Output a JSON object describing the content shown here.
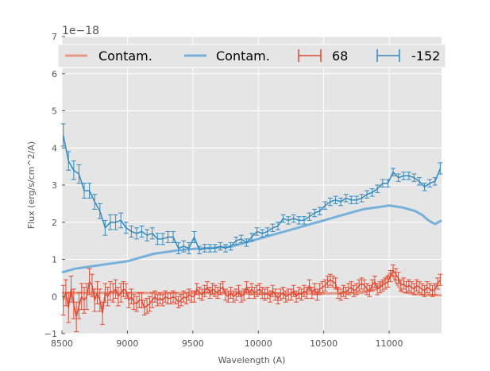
{
  "chart_data": {
    "type": "line",
    "title": "",
    "xlabel": "Wavelength (A)",
    "ylabel": "Flux (erg/s/cm^2/A)",
    "y_offset_label": "1e−18",
    "y_scale": 1e-18,
    "xlim": [
      8500,
      11400
    ],
    "ylim": [
      -1,
      7
    ],
    "xticks": [
      8500,
      9000,
      9500,
      10000,
      10500,
      11000
    ],
    "yticks": [
      -1,
      0,
      1,
      2,
      3,
      4,
      5,
      6,
      7
    ],
    "grid": true,
    "legend_position": "top",
    "series": [
      {
        "name": "Contam.",
        "kind": "line",
        "color": "#E69A85",
        "x": [
          8500,
          8700,
          9000,
          9300,
          9600,
          9900,
          10200,
          10500,
          10800,
          10900,
          10960,
          11000,
          11030,
          11060,
          11100,
          11200,
          11300,
          11400
        ],
        "y": [
          0.1,
          0.1,
          0.1,
          0.09,
          0.09,
          0.08,
          0.08,
          0.08,
          0.1,
          0.2,
          0.4,
          0.62,
          0.55,
          0.32,
          0.12,
          0.06,
          0.04,
          0.03
        ]
      },
      {
        "name": "Contam.",
        "kind": "line",
        "color": "#77B0D9",
        "x": [
          8500,
          8600,
          8700,
          8800,
          8900,
          9000,
          9100,
          9200,
          9300,
          9400,
          9500,
          9600,
          9700,
          9800,
          9900,
          10000,
          10100,
          10200,
          10300,
          10400,
          10500,
          10600,
          10700,
          10800,
          10900,
          11000,
          11100,
          11200,
          11250,
          11300,
          11350,
          11400
        ],
        "y": [
          0.65,
          0.75,
          0.8,
          0.85,
          0.9,
          0.95,
          1.05,
          1.15,
          1.2,
          1.25,
          1.28,
          1.3,
          1.32,
          1.35,
          1.45,
          1.55,
          1.65,
          1.75,
          1.85,
          1.95,
          2.05,
          2.15,
          2.25,
          2.35,
          2.4,
          2.45,
          2.4,
          2.3,
          2.2,
          2.05,
          1.95,
          2.05
        ]
      },
      {
        "name": "68",
        "kind": "errorbar",
        "color": "#E24A33",
        "x": [
          8510,
          8530,
          8550,
          8570,
          8590,
          8610,
          8630,
          8650,
          8670,
          8690,
          8710,
          8730,
          8750,
          8770,
          8790,
          8810,
          8830,
          8850,
          8870,
          8890,
          8910,
          8930,
          8950,
          8970,
          8990,
          9010,
          9030,
          9050,
          9070,
          9090,
          9110,
          9130,
          9150,
          9170,
          9190,
          9210,
          9230,
          9250,
          9270,
          9290,
          9310,
          9330,
          9350,
          9370,
          9390,
          9410,
          9430,
          9450,
          9470,
          9490,
          9510,
          9530,
          9550,
          9570,
          9590,
          9610,
          9630,
          9650,
          9670,
          9690,
          9710,
          9730,
          9750,
          9770,
          9790,
          9810,
          9830,
          9850,
          9870,
          9890,
          9910,
          9930,
          9950,
          9970,
          9990,
          10010,
          10030,
          10050,
          10070,
          10090,
          10110,
          10130,
          10150,
          10170,
          10190,
          10210,
          10230,
          10250,
          10270,
          10290,
          10310,
          10330,
          10350,
          10370,
          10390,
          10410,
          10430,
          10450,
          10470,
          10490,
          10510,
          10530,
          10550,
          10570,
          10590,
          10610,
          10630,
          10650,
          10670,
          10690,
          10710,
          10730,
          10750,
          10770,
          10790,
          10810,
          10830,
          10850,
          10870,
          10890,
          10910,
          10930,
          10950,
          10970,
          10990,
          11010,
          11030,
          11050,
          11070,
          11090,
          11110,
          11130,
          11150,
          11170,
          11190,
          11210,
          11230,
          11250,
          11270,
          11290,
          11310,
          11330,
          11350,
          11370,
          11390
        ],
        "y": [
          -0.1,
          0.1,
          -0.3,
          0.2,
          -0.2,
          -0.55,
          -0.25,
          0.0,
          -0.1,
          0.0,
          0.4,
          0.3,
          -0.1,
          0.1,
          -0.1,
          -0.45,
          0.1,
          0.0,
          0.15,
          0.1,
          0.2,
          0.0,
          0.1,
          0.2,
          0.15,
          -0.1,
          0.0,
          -0.15,
          -0.2,
          -0.1,
          -0.1,
          -0.3,
          -0.25,
          -0.2,
          -0.1,
          0.0,
          -0.1,
          -0.05,
          -0.1,
          0.0,
          -0.05,
          -0.05,
          0.0,
          -0.05,
          -0.15,
          -0.1,
          0.0,
          -0.05,
          0.05,
          0.0,
          0.0,
          0.2,
          0.1,
          0.05,
          0.15,
          0.25,
          0.1,
          0.2,
          0.15,
          0.1,
          0.2,
          0.25,
          0.05,
          0.0,
          0.1,
          0.0,
          0.05,
          0.15,
          0.0,
          0.05,
          0.25,
          0.1,
          0.2,
          0.1,
          0.15,
          0.2,
          0.1,
          0.05,
          0.1,
          0.0,
          0.15,
          0.05,
          -0.05,
          0.05,
          0.1,
          0.0,
          0.05,
          0.05,
          0.15,
          0.0,
          0.1,
          0.05,
          0.15,
          0.1,
          0.3,
          0.1,
          0.2,
          0.05,
          0.2,
          0.25,
          0.3,
          0.4,
          0.45,
          0.4,
          0.35,
          0.1,
          0.05,
          0.15,
          0.1,
          0.2,
          0.25,
          0.15,
          0.2,
          0.3,
          0.35,
          0.3,
          0.2,
          0.15,
          0.3,
          0.4,
          0.2,
          0.25,
          0.3,
          0.35,
          0.4,
          0.55,
          0.7,
          0.6,
          0.5,
          0.3,
          0.35,
          0.25,
          0.3,
          0.25,
          0.2,
          0.3,
          0.25,
          0.2,
          0.15,
          0.25,
          0.2,
          0.15,
          0.2,
          0.35,
          0.45
        ],
        "err": [
          0.4,
          0.35,
          0.4,
          0.35,
          0.4,
          0.4,
          0.35,
          0.35,
          0.35,
          0.35,
          0.35,
          0.3,
          0.3,
          0.3,
          0.3,
          0.3,
          0.25,
          0.25,
          0.25,
          0.25,
          0.25,
          0.25,
          0.25,
          0.2,
          0.2,
          0.2,
          0.2,
          0.2,
          0.2,
          0.2,
          0.2,
          0.2,
          0.2,
          0.2,
          0.2,
          0.15,
          0.15,
          0.15,
          0.15,
          0.15,
          0.15,
          0.15,
          0.15,
          0.15,
          0.15,
          0.15,
          0.15,
          0.15,
          0.15,
          0.15,
          0.15,
          0.15,
          0.15,
          0.15,
          0.15,
          0.15,
          0.15,
          0.15,
          0.15,
          0.15,
          0.15,
          0.15,
          0.15,
          0.15,
          0.15,
          0.15,
          0.15,
          0.15,
          0.15,
          0.15,
          0.15,
          0.15,
          0.15,
          0.15,
          0.15,
          0.15,
          0.15,
          0.15,
          0.15,
          0.15,
          0.15,
          0.15,
          0.15,
          0.15,
          0.15,
          0.15,
          0.15,
          0.15,
          0.15,
          0.15,
          0.15,
          0.15,
          0.15,
          0.15,
          0.15,
          0.15,
          0.15,
          0.15,
          0.15,
          0.15,
          0.15,
          0.15,
          0.15,
          0.15,
          0.15,
          0.15,
          0.15,
          0.15,
          0.15,
          0.15,
          0.15,
          0.15,
          0.15,
          0.15,
          0.15,
          0.15,
          0.15,
          0.15,
          0.15,
          0.15,
          0.15,
          0.15,
          0.15,
          0.15,
          0.15,
          0.15,
          0.15,
          0.15,
          0.15,
          0.15,
          0.15,
          0.15,
          0.15,
          0.15,
          0.15,
          0.15,
          0.15,
          0.15,
          0.15,
          0.15,
          0.15,
          0.15,
          0.15,
          0.15,
          0.15
        ]
      },
      {
        "name": "-152",
        "kind": "errorbar",
        "color": "#348ABD",
        "x": [
          8510,
          8550,
          8590,
          8630,
          8670,
          8710,
          8750,
          8790,
          8830,
          8870,
          8910,
          8950,
          8990,
          9030,
          9070,
          9110,
          9150,
          9190,
          9230,
          9270,
          9310,
          9350,
          9390,
          9430,
          9470,
          9510,
          9550,
          9590,
          9630,
          9670,
          9710,
          9750,
          9790,
          9830,
          9870,
          9910,
          9950,
          9990,
          10030,
          10070,
          10110,
          10150,
          10190,
          10230,
          10270,
          10310,
          10350,
          10390,
          10430,
          10470,
          10510,
          10550,
          10590,
          10630,
          10670,
          10710,
          10750,
          10790,
          10830,
          10870,
          10910,
          10950,
          10990,
          11030,
          11070,
          11110,
          11150,
          11190,
          11230,
          11270,
          11310,
          11350,
          11390
        ],
        "y": [
          4.35,
          3.65,
          3.4,
          3.3,
          2.85,
          2.85,
          2.55,
          2.3,
          1.85,
          2.0,
          2.0,
          2.05,
          1.85,
          1.75,
          1.7,
          1.75,
          1.65,
          1.7,
          1.55,
          1.55,
          1.6,
          1.6,
          1.3,
          1.35,
          1.3,
          1.6,
          1.25,
          1.3,
          1.3,
          1.3,
          1.35,
          1.3,
          1.35,
          1.5,
          1.55,
          1.45,
          1.6,
          1.75,
          1.7,
          1.75,
          1.85,
          1.9,
          2.1,
          2.05,
          2.1,
          2.05,
          2.05,
          2.15,
          2.25,
          2.3,
          2.45,
          2.55,
          2.6,
          2.55,
          2.65,
          2.6,
          2.6,
          2.65,
          2.75,
          2.8,
          2.9,
          3.05,
          3.05,
          3.35,
          3.2,
          3.25,
          3.25,
          3.2,
          3.1,
          2.95,
          3.05,
          3.1,
          3.45
        ],
        "err": [
          0.3,
          0.25,
          0.25,
          0.25,
          0.2,
          0.2,
          0.2,
          0.2,
          0.2,
          0.2,
          0.2,
          0.2,
          0.15,
          0.15,
          0.15,
          0.15,
          0.15,
          0.15,
          0.15,
          0.15,
          0.15,
          0.15,
          0.15,
          0.15,
          0.15,
          0.15,
          0.1,
          0.1,
          0.1,
          0.1,
          0.1,
          0.1,
          0.1,
          0.1,
          0.1,
          0.1,
          0.1,
          0.1,
          0.1,
          0.1,
          0.1,
          0.1,
          0.1,
          0.1,
          0.1,
          0.1,
          0.1,
          0.1,
          0.1,
          0.1,
          0.1,
          0.1,
          0.1,
          0.1,
          0.1,
          0.1,
          0.1,
          0.1,
          0.1,
          0.1,
          0.1,
          0.1,
          0.1,
          0.1,
          0.1,
          0.1,
          0.1,
          0.1,
          0.1,
          0.1,
          0.1,
          0.1,
          0.15
        ]
      }
    ]
  }
}
